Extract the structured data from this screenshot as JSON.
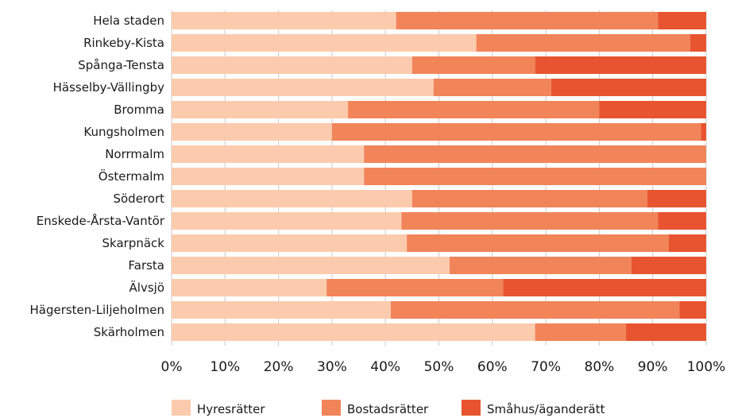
{
  "colors": {
    "hyresratter": "#fccbad",
    "bostadsratter": "#f2845a",
    "smahus": "#e8542f",
    "grid": "#c8c8c8"
  },
  "chart_data": {
    "type": "bar",
    "orientation": "horizontal",
    "stacked": "percent",
    "categories": [
      "Hela staden",
      "Rinkeby-Kista",
      "Spånga-Tensta",
      "Hässelby-Vällingby",
      "Bromma",
      "Kungsholmen",
      "Norrmalm",
      "Östermalm",
      "Söderort",
      "Enskede-Årsta-Vantör",
      "Skarpnäck",
      "Farsta",
      "Älvsjö",
      "Hägersten-Liljeholmen",
      "Skärholmen"
    ],
    "series": [
      {
        "name": "Hyresrätter",
        "values": [
          42,
          57,
          45,
          49,
          33,
          30,
          36,
          36,
          45,
          43,
          44,
          52,
          29,
          41,
          68
        ]
      },
      {
        "name": "Bostadsrätter",
        "values": [
          49,
          40,
          23,
          22,
          47,
          69,
          64,
          64,
          44,
          48,
          49,
          34,
          33,
          54,
          17
        ]
      },
      {
        "name": "Småhus/äganderätt",
        "values": [
          9,
          3,
          32,
          29,
          20,
          1,
          0,
          0,
          11,
          9,
          7,
          14,
          38,
          5,
          15
        ]
      }
    ],
    "xticks": [
      "0%",
      "10%",
      "20%",
      "30%",
      "40%",
      "50%",
      "60%",
      "70%",
      "80%",
      "90%",
      "100%"
    ],
    "xlim": [
      0,
      100
    ],
    "grid": true,
    "legend": "bottom"
  }
}
